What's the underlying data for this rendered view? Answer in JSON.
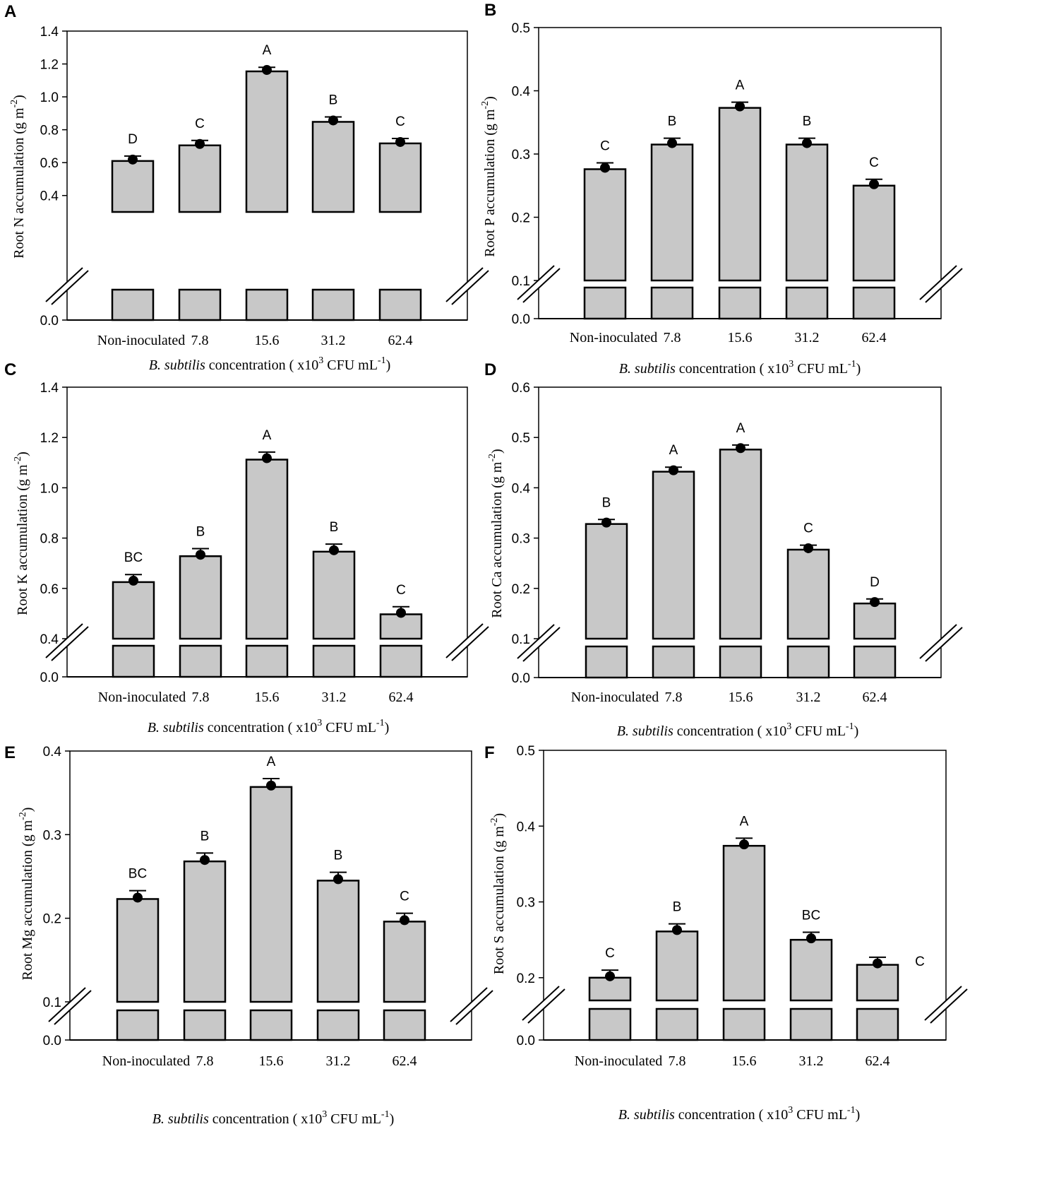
{
  "figure": {
    "xlabel": {
      "italic": "B. subtilis",
      "main": " concentration ( x10",
      "sup1": "3",
      "unit": " CFU mL",
      "sup2": "-1",
      "close": ")"
    },
    "categories": [
      "Non-inoculated",
      "7.8",
      "15.6",
      "31.2",
      "62.4"
    ]
  },
  "chart_data": [
    {
      "panel": "A",
      "type": "bar",
      "ylabel": "Root N accumulation (g m",
      "ylabel_sup": "-2",
      "ylabel_close": ")",
      "ylim": [
        0.0,
        1.4
      ],
      "axis_break": [
        0.0,
        0.3
      ],
      "yticks": [
        0.0,
        0.4,
        0.6,
        0.8,
        1.0,
        1.2,
        1.4
      ],
      "ytick_labels": [
        "0.0",
        "0.4",
        "0.6",
        "0.8",
        "1.0",
        "1.2",
        "1.4"
      ],
      "categories": [
        "Non-inoculated",
        "7.8",
        "15.6",
        "31.2",
        "62.4"
      ],
      "values": [
        0.61,
        0.705,
        1.155,
        0.848,
        0.717
      ],
      "errors": [
        0.03,
        0.03,
        0.025,
        0.03,
        0.03
      ],
      "letters": [
        "D",
        "C",
        "A",
        "B",
        "C"
      ]
    },
    {
      "panel": "B",
      "type": "bar",
      "ylabel": "Root P accumulation (g m",
      "ylabel_sup": "-2",
      "ylabel_close": ")",
      "ylim": [
        0.0,
        0.5
      ],
      "axis_break": [
        0.0,
        0.1
      ],
      "yticks": [
        0.0,
        0.1,
        0.2,
        0.3,
        0.4,
        0.5
      ],
      "ytick_labels": [
        "0.0",
        "0.1",
        "0.2",
        "0.3",
        "0.4",
        "0.5"
      ],
      "categories": [
        "Non-inoculated",
        "7.8",
        "15.6",
        "31.2",
        "62.4"
      ],
      "values": [
        0.276,
        0.315,
        0.373,
        0.315,
        0.25
      ],
      "errors": [
        0.01,
        0.01,
        0.009,
        0.01,
        0.01
      ],
      "letters": [
        "C",
        "B",
        "A",
        "B",
        "C"
      ]
    },
    {
      "panel": "C",
      "type": "bar",
      "ylabel": "Root K accumulation (g m",
      "ylabel_sup": "-2",
      "ylabel_close": ")",
      "ylim": [
        0.0,
        1.4
      ],
      "axis_break": [
        0.0,
        0.4
      ],
      "yticks": [
        0.0,
        0.4,
        0.6,
        0.8,
        1.0,
        1.2,
        1.4
      ],
      "ytick_labels": [
        "0.0",
        "0.4",
        "0.6",
        "0.8",
        "1.0",
        "1.2",
        "1.4"
      ],
      "categories": [
        "Non-inoculated",
        "7.8",
        "15.6",
        "31.2",
        "62.4"
      ],
      "values": [
        0.625,
        0.728,
        1.112,
        0.746,
        0.497
      ],
      "errors": [
        0.03,
        0.03,
        0.03,
        0.03,
        0.03
      ],
      "letters": [
        "BC",
        "B",
        "A",
        "B",
        "C"
      ]
    },
    {
      "panel": "D",
      "type": "bar",
      "ylabel": "Root Ca accumulation (g m",
      "ylabel_sup": "-2",
      "ylabel_close": ")",
      "ylim": [
        0.0,
        0.6
      ],
      "axis_break": [
        0.0,
        0.1
      ],
      "yticks": [
        0.0,
        0.1,
        0.2,
        0.3,
        0.4,
        0.5,
        0.6
      ],
      "ytick_labels": [
        "0.0",
        "0.1",
        "0.2",
        "0.3",
        "0.4",
        "0.5",
        "0.6"
      ],
      "categories": [
        "Non-inoculated",
        "7.8",
        "15.6",
        "31.2",
        "62.4"
      ],
      "values": [
        0.328,
        0.432,
        0.476,
        0.277,
        0.17
      ],
      "errors": [
        0.009,
        0.009,
        0.009,
        0.009,
        0.009
      ],
      "letters": [
        "B",
        "A",
        "A",
        "C",
        "D"
      ]
    },
    {
      "panel": "E",
      "type": "bar",
      "ylabel": "Root Mg accumulation (g m",
      "ylabel_sup": "-2",
      "ylabel_close": ")",
      "ylim": [
        0.0,
        0.4
      ],
      "axis_break": [
        0.0,
        0.1
      ],
      "yticks": [
        0.0,
        0.1,
        0.2,
        0.3,
        0.4
      ],
      "ytick_labels": [
        "0.0",
        "0.1",
        "0.2",
        "0.3",
        "0.4"
      ],
      "categories": [
        "Non-inoculated",
        "7.8",
        "15.6",
        "31.2",
        "62.4"
      ],
      "values": [
        0.223,
        0.268,
        0.357,
        0.245,
        0.196
      ],
      "errors": [
        0.01,
        0.01,
        0.01,
        0.01,
        0.01
      ],
      "letters": [
        "BC",
        "B",
        "A",
        "B",
        "C"
      ]
    },
    {
      "panel": "F",
      "type": "bar",
      "ylabel": "Root S accumulation (g m",
      "ylabel_sup": "-2",
      "ylabel_close": ")",
      "ylim": [
        0.0,
        0.5
      ],
      "axis_break": [
        0.0,
        0.17
      ],
      "yticks": [
        0.0,
        0.2,
        0.3,
        0.4,
        0.5
      ],
      "ytick_labels": [
        "0.0",
        "0.2",
        "0.3",
        "0.4",
        "0.5"
      ],
      "categories": [
        "Non-inoculated",
        "7.8",
        "15.6",
        "31.2",
        "62.4"
      ],
      "values": [
        0.2,
        0.261,
        0.374,
        0.25,
        0.217
      ],
      "errors": [
        0.01,
        0.01,
        0.01,
        0.01,
        0.01
      ],
      "letters": [
        "C",
        "B",
        "A",
        "BC",
        "C"
      ]
    }
  ]
}
